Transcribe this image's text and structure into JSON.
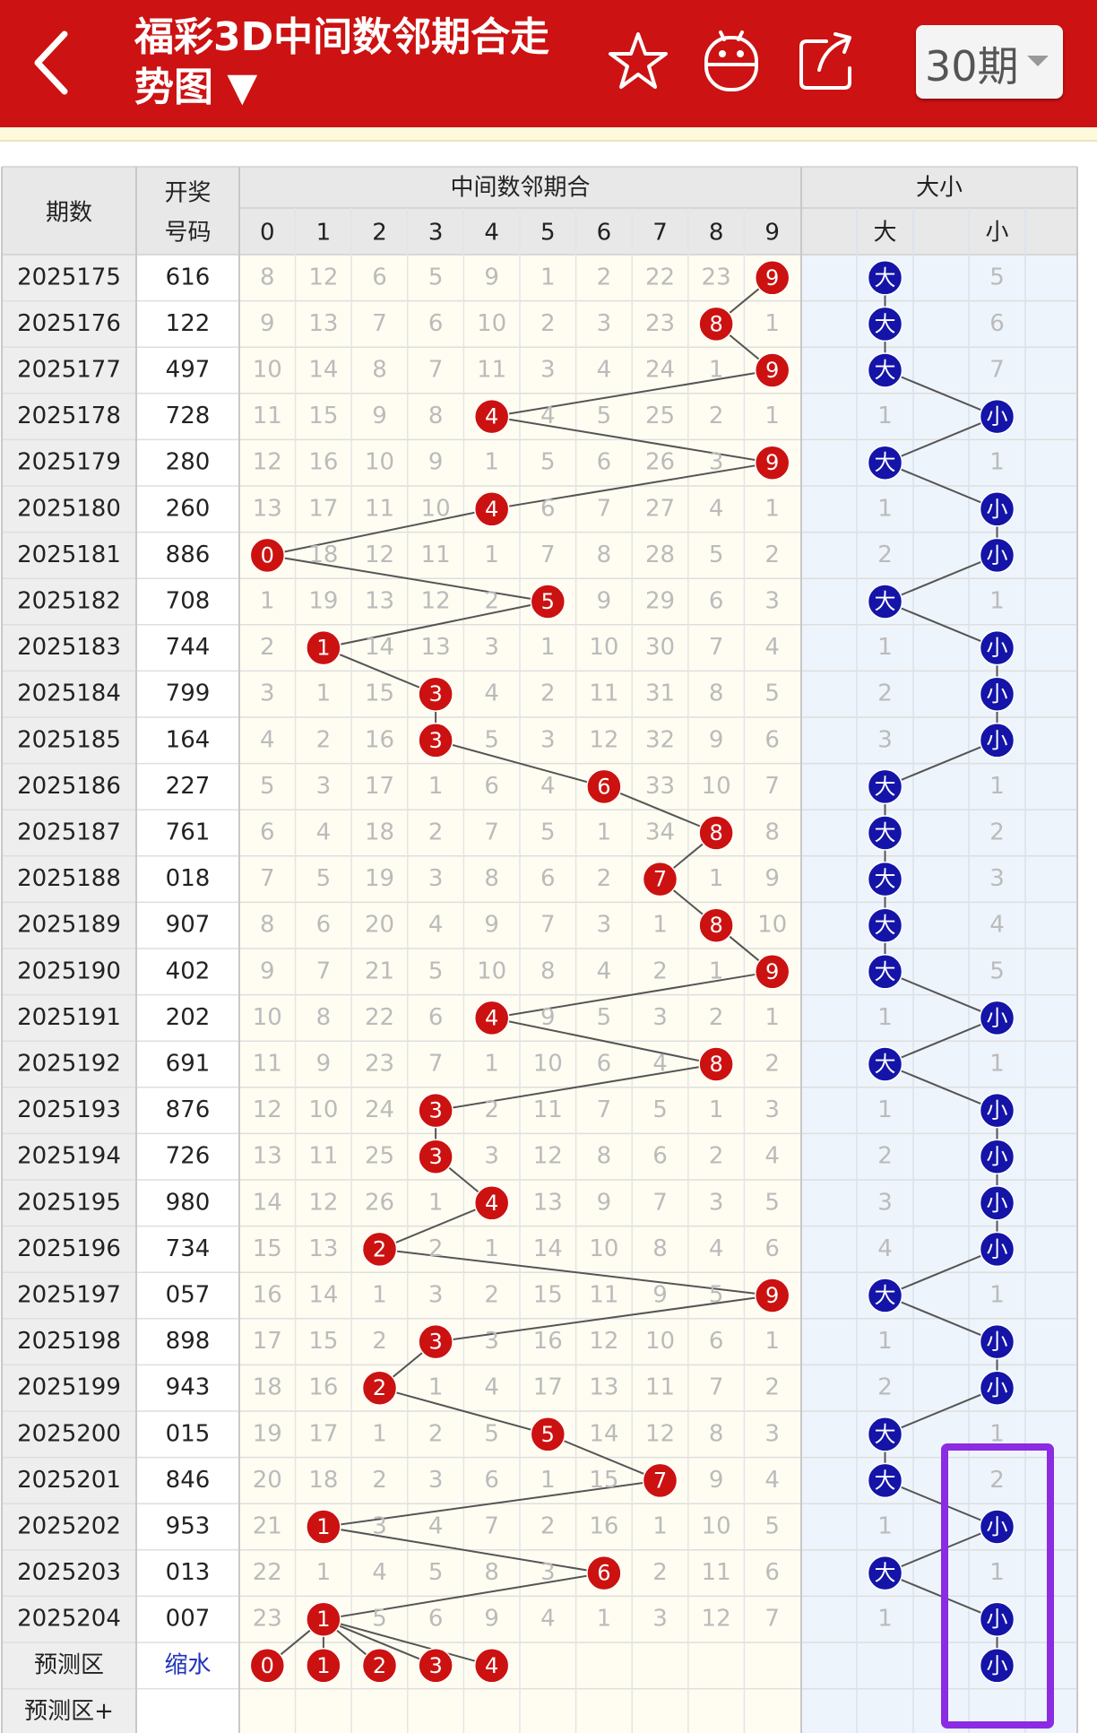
{
  "header": {
    "title": "福彩3D中间数邻期合走势图 ▼",
    "period_selector": "30期",
    "icons": [
      "back-arrow-icon",
      "star-icon",
      "robot-icon",
      "share-icon",
      "chevron-down-icon"
    ]
  },
  "colors": {
    "header_bg": "#cc1212",
    "red_ball": "#cc1111",
    "blue_ball": "#1414a8",
    "highlight_box": "#8b2be2",
    "size_area_bg": "#eef4fb",
    "odd_area_bg": "#fffdf2"
  },
  "table": {
    "col_period": "期数",
    "col_draw_1": "开奖",
    "col_draw_2": "号码",
    "group_sum": "中间数邻期合",
    "group_size": "大小",
    "digits": [
      "0",
      "1",
      "2",
      "3",
      "4",
      "5",
      "6",
      "7",
      "8",
      "9"
    ],
    "size_labels": [
      "大",
      "小"
    ],
    "big": "大",
    "small": "小",
    "rows": [
      {
        "period": "2025175",
        "draw": "616",
        "sum": 9,
        "miss": [
          8,
          12,
          6,
          5,
          9,
          1,
          2,
          22,
          23,
          null
        ],
        "size": "大",
        "size_miss": 5
      },
      {
        "period": "2025176",
        "draw": "122",
        "sum": 8,
        "miss": [
          9,
          13,
          7,
          6,
          10,
          2,
          3,
          23,
          null,
          1
        ],
        "size": "大",
        "size_miss": 6
      },
      {
        "period": "2025177",
        "draw": "497",
        "sum": 9,
        "miss": [
          10,
          14,
          8,
          7,
          11,
          3,
          4,
          24,
          1,
          null
        ],
        "size": "大",
        "size_miss": 7
      },
      {
        "period": "2025178",
        "draw": "728",
        "sum": 4,
        "miss": [
          11,
          15,
          9,
          8,
          null,
          4,
          5,
          25,
          2,
          1
        ],
        "size": "小",
        "size_miss": 1
      },
      {
        "period": "2025179",
        "draw": "280",
        "sum": 9,
        "miss": [
          12,
          16,
          10,
          9,
          1,
          5,
          6,
          26,
          3,
          null
        ],
        "size": "大",
        "size_miss": 1
      },
      {
        "period": "2025180",
        "draw": "260",
        "sum": 4,
        "miss": [
          13,
          17,
          11,
          10,
          null,
          6,
          7,
          27,
          4,
          1
        ],
        "size": "小",
        "size_miss": 1
      },
      {
        "period": "2025181",
        "draw": "886",
        "sum": 0,
        "miss": [
          null,
          18,
          12,
          11,
          1,
          7,
          8,
          28,
          5,
          2
        ],
        "size": "小",
        "size_miss": 2
      },
      {
        "period": "2025182",
        "draw": "708",
        "sum": 5,
        "miss": [
          1,
          19,
          13,
          12,
          2,
          null,
          9,
          29,
          6,
          3
        ],
        "size": "大",
        "size_miss": 1
      },
      {
        "period": "2025183",
        "draw": "744",
        "sum": 1,
        "miss": [
          2,
          null,
          14,
          13,
          3,
          1,
          10,
          30,
          7,
          4
        ],
        "size": "小",
        "size_miss": 1
      },
      {
        "period": "2025184",
        "draw": "799",
        "sum": 3,
        "miss": [
          3,
          1,
          15,
          null,
          4,
          2,
          11,
          31,
          8,
          5
        ],
        "size": "小",
        "size_miss": 2
      },
      {
        "period": "2025185",
        "draw": "164",
        "sum": 3,
        "miss": [
          4,
          2,
          16,
          null,
          5,
          3,
          12,
          32,
          9,
          6
        ],
        "size": "小",
        "size_miss": 3
      },
      {
        "period": "2025186",
        "draw": "227",
        "sum": 6,
        "miss": [
          5,
          3,
          17,
          1,
          6,
          4,
          null,
          33,
          10,
          7
        ],
        "size": "大",
        "size_miss": 1
      },
      {
        "period": "2025187",
        "draw": "761",
        "sum": 8,
        "miss": [
          6,
          4,
          18,
          2,
          7,
          5,
          1,
          34,
          null,
          8
        ],
        "size": "大",
        "size_miss": 2
      },
      {
        "period": "2025188",
        "draw": "018",
        "sum": 7,
        "miss": [
          7,
          5,
          19,
          3,
          8,
          6,
          2,
          null,
          1,
          9
        ],
        "size": "大",
        "size_miss": 3
      },
      {
        "period": "2025189",
        "draw": "907",
        "sum": 8,
        "miss": [
          8,
          6,
          20,
          4,
          9,
          7,
          3,
          1,
          null,
          10
        ],
        "size": "大",
        "size_miss": 4
      },
      {
        "period": "2025190",
        "draw": "402",
        "sum": 9,
        "miss": [
          9,
          7,
          21,
          5,
          10,
          8,
          4,
          2,
          1,
          null
        ],
        "size": "大",
        "size_miss": 5
      },
      {
        "period": "2025191",
        "draw": "202",
        "sum": 4,
        "miss": [
          10,
          8,
          22,
          6,
          null,
          9,
          5,
          3,
          2,
          1
        ],
        "size": "小",
        "size_miss": 1
      },
      {
        "period": "2025192",
        "draw": "691",
        "sum": 8,
        "miss": [
          11,
          9,
          23,
          7,
          1,
          10,
          6,
          4,
          null,
          2
        ],
        "size": "大",
        "size_miss": 1
      },
      {
        "period": "2025193",
        "draw": "876",
        "sum": 3,
        "miss": [
          12,
          10,
          24,
          null,
          2,
          11,
          7,
          5,
          1,
          3
        ],
        "size": "小",
        "size_miss": 1
      },
      {
        "period": "2025194",
        "draw": "726",
        "sum": 3,
        "miss": [
          13,
          11,
          25,
          null,
          3,
          12,
          8,
          6,
          2,
          4
        ],
        "size": "小",
        "size_miss": 2
      },
      {
        "period": "2025195",
        "draw": "980",
        "sum": 4,
        "miss": [
          14,
          12,
          26,
          1,
          null,
          13,
          9,
          7,
          3,
          5
        ],
        "size": "小",
        "size_miss": 3
      },
      {
        "period": "2025196",
        "draw": "734",
        "sum": 2,
        "miss": [
          15,
          13,
          null,
          2,
          1,
          14,
          10,
          8,
          4,
          6
        ],
        "size": "小",
        "size_miss": 4
      },
      {
        "period": "2025197",
        "draw": "057",
        "sum": 9,
        "miss": [
          16,
          14,
          1,
          3,
          2,
          15,
          11,
          9,
          5,
          null
        ],
        "size": "大",
        "size_miss": 1
      },
      {
        "period": "2025198",
        "draw": "898",
        "sum": 3,
        "miss": [
          17,
          15,
          2,
          null,
          3,
          16,
          12,
          10,
          6,
          1
        ],
        "size": "小",
        "size_miss": 1
      },
      {
        "period": "2025199",
        "draw": "943",
        "sum": 2,
        "miss": [
          18,
          16,
          null,
          1,
          4,
          17,
          13,
          11,
          7,
          2
        ],
        "size": "小",
        "size_miss": 2
      },
      {
        "period": "2025200",
        "draw": "015",
        "sum": 5,
        "miss": [
          19,
          17,
          1,
          2,
          5,
          null,
          14,
          12,
          8,
          3
        ],
        "size": "大",
        "size_miss": 1
      },
      {
        "period": "2025201",
        "draw": "846",
        "sum": 7,
        "miss": [
          20,
          18,
          2,
          3,
          6,
          1,
          15,
          null,
          9,
          4
        ],
        "size": "大",
        "size_miss": 2
      },
      {
        "period": "2025202",
        "draw": "953",
        "sum": 1,
        "miss": [
          21,
          null,
          3,
          4,
          7,
          2,
          16,
          1,
          10,
          5
        ],
        "size": "小",
        "size_miss": 1
      },
      {
        "period": "2025203",
        "draw": "013",
        "sum": 6,
        "miss": [
          22,
          1,
          4,
          5,
          8,
          3,
          null,
          2,
          11,
          6
        ],
        "size": "大",
        "size_miss": 1
      },
      {
        "period": "2025204",
        "draw": "007",
        "sum": 1,
        "miss": [
          23,
          null,
          5,
          6,
          9,
          4,
          1,
          3,
          12,
          7
        ],
        "size": "小",
        "size_miss": 1
      }
    ],
    "forecast": {
      "label": "预测区",
      "link": "缩水",
      "balls": [
        0,
        1,
        2,
        3,
        4
      ],
      "size": "小"
    },
    "forecast_plus": {
      "label": "预测区+"
    }
  }
}
